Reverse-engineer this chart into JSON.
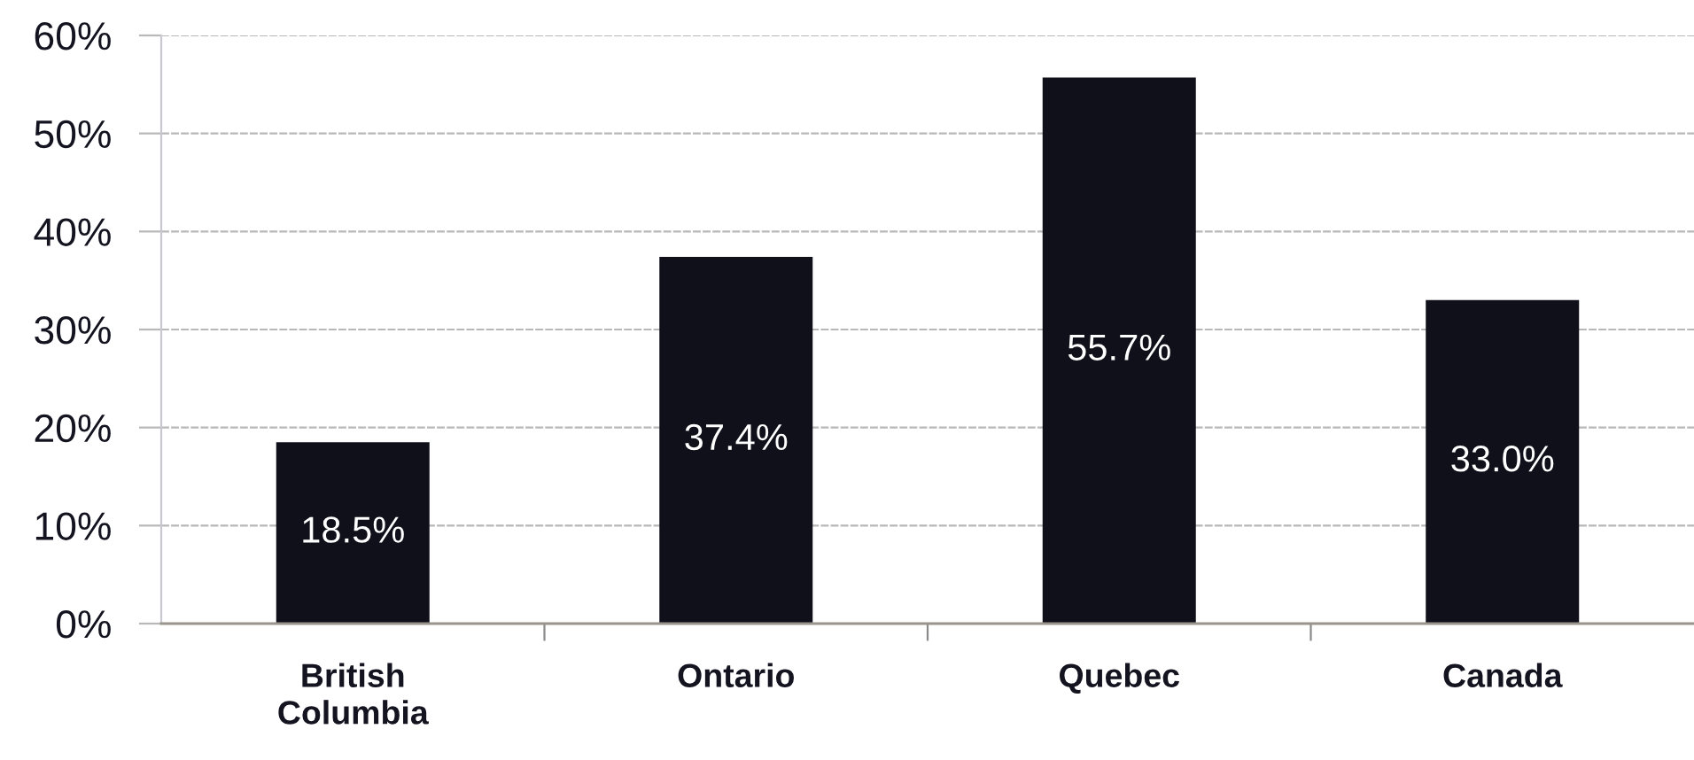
{
  "chart_data": {
    "type": "bar",
    "categories": [
      "British\nColumbia",
      "Ontario",
      "Quebec",
      "Canada"
    ],
    "values": [
      18.5,
      37.4,
      55.7,
      33.0
    ],
    "value_labels": [
      "18.5%",
      "37.4%",
      "55.7%",
      "33.0%"
    ],
    "color": "#10101a",
    "ylim": [
      0,
      60
    ],
    "yticks": [
      {
        "value": 0,
        "label": "0%"
      },
      {
        "value": 10,
        "label": "10%"
      },
      {
        "value": 20,
        "label": "20%"
      },
      {
        "value": 30,
        "label": "30%"
      },
      {
        "value": 40,
        "label": "40%"
      },
      {
        "value": 50,
        "label": "50%"
      },
      {
        "value": 60,
        "label": "60%"
      }
    ],
    "grid": "y"
  }
}
